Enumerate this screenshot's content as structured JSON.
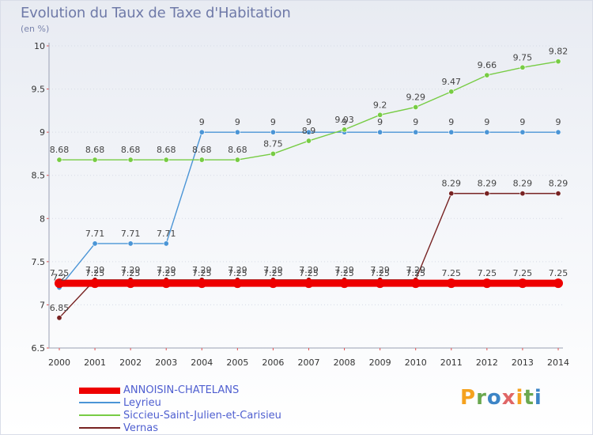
{
  "header": {
    "title": "Evolution du Taux de Taxe d'Habitation",
    "subtitle": "(en %)"
  },
  "brand": {
    "text": "Proxiti"
  },
  "chart_data": {
    "type": "line",
    "title": "Evolution du Taux de Taxe d'Habitation",
    "subtitle": "(en %)",
    "xlabel": "",
    "ylabel": "",
    "ylim": [
      6.5,
      10
    ],
    "yticks": [
      "6.5",
      "7",
      "7.5",
      "8",
      "8.5",
      "9",
      "9.5",
      "10"
    ],
    "x": [
      "2000",
      "2001",
      "2002",
      "2003",
      "2004",
      "2005",
      "2006",
      "2007",
      "2008",
      "2009",
      "2010",
      "2011",
      "2012",
      "2013",
      "2014"
    ],
    "grid": "horizontal",
    "legend_position": "bottom-left",
    "series": [
      {
        "name": "ANNOISIN-CHATELANS",
        "color": "#ee0000",
        "values": [
          7.25,
          7.25,
          7.25,
          7.25,
          7.25,
          7.25,
          7.25,
          7.25,
          7.25,
          7.25,
          7.25,
          7.25,
          7.25,
          7.25,
          7.25
        ],
        "labels": [
          "7.25",
          "7.25",
          "7.25",
          "7.25",
          "7.25",
          "7.25",
          "7.25",
          "7.25",
          "7.25",
          "7.25",
          "7.25",
          "7.25",
          "7.25",
          "7.25",
          "7.25"
        ]
      },
      {
        "name": "Leyrieu",
        "color": "#4b95d6",
        "values": [
          7.2,
          7.71,
          7.71,
          7.71,
          9,
          9,
          9,
          9,
          9,
          9,
          9,
          9,
          9,
          9,
          9
        ],
        "labels": [
          "7.2",
          "7.71",
          "7.71",
          "7.71",
          "9",
          "9",
          "9",
          "9",
          "9",
          "9",
          "9",
          "9",
          "9",
          "9",
          "9"
        ]
      },
      {
        "name": "Siccieu-Saint-Julien-et-Carisieu",
        "color": "#77cc44",
        "values": [
          8.68,
          8.68,
          8.68,
          8.68,
          8.68,
          8.68,
          8.75,
          8.9,
          9.03,
          9.2,
          9.29,
          9.47,
          9.66,
          9.75,
          9.82
        ],
        "labels": [
          "8.68",
          "8.68",
          "8.68",
          "8.68",
          "8.68",
          "8.68",
          "8.75",
          "8.9",
          "9.03",
          "9.2",
          "9.29",
          "9.47",
          "9.66",
          "9.75",
          "9.82"
        ]
      },
      {
        "name": "Vernas",
        "color": "#772222",
        "values": [
          6.85,
          7.29,
          7.29,
          7.29,
          7.29,
          7.29,
          7.29,
          7.29,
          7.29,
          7.29,
          7.29,
          8.29,
          8.29,
          8.29,
          8.29
        ],
        "labels": [
          "6.85",
          "7.29",
          "7.29",
          "7.29",
          "7.29",
          "7.29",
          "7.29",
          "7.29",
          "7.29",
          "7.29",
          "7.29",
          "8.29",
          "8.29",
          "8.29",
          "8.29"
        ]
      }
    ]
  }
}
